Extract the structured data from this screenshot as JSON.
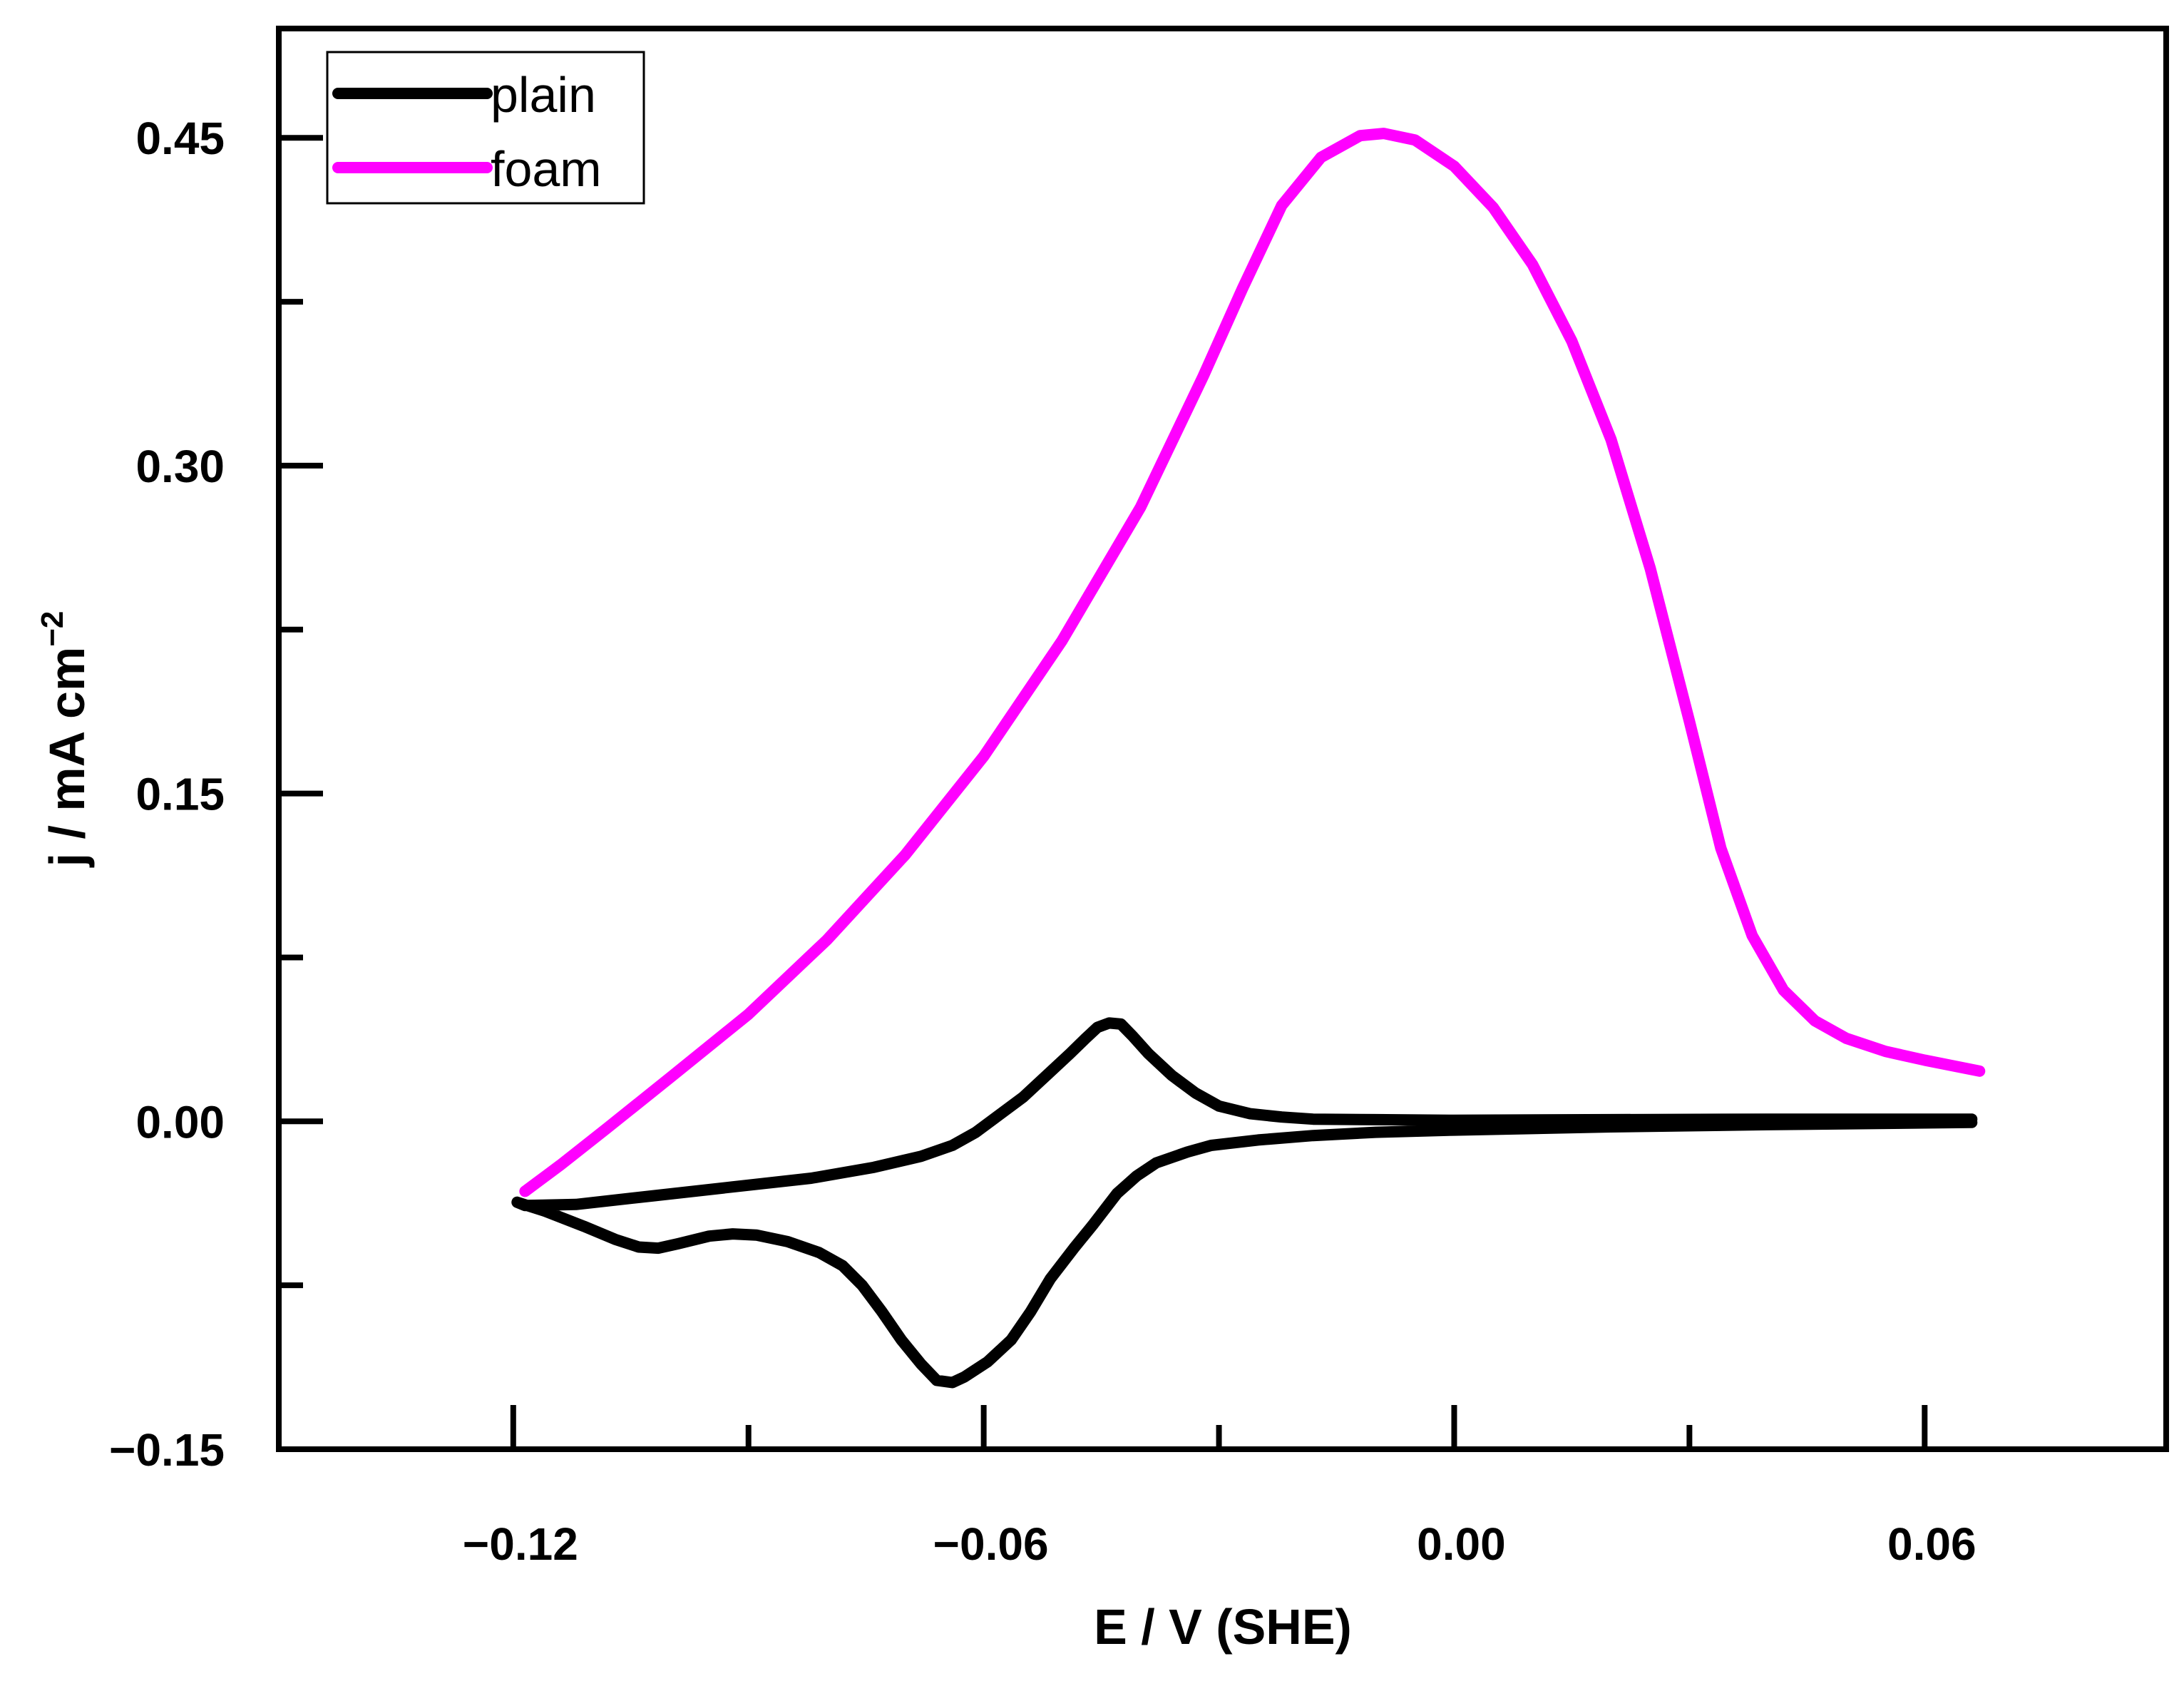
{
  "chart_data": {
    "type": "line",
    "title": "",
    "xlabel": "E / V (SHE)",
    "ylabel_main": "j / mA cm",
    "ylabel_sup": "−2",
    "xlim": [
      -0.1499,
      0.0908
    ],
    "ylim": [
      -0.15,
      0.5
    ],
    "x_ticks": [
      {
        "value": -0.12,
        "label": "−0.12"
      },
      {
        "value": -0.06,
        "label": "−0.06"
      },
      {
        "value": 0.0,
        "label": "0.00"
      },
      {
        "value": 0.06,
        "label": "0.06"
      }
    ],
    "x_minor_ticks": [
      -0.09,
      -0.03,
      0.03
    ],
    "y_ticks": [
      {
        "value": -0.15,
        "label": "−0.15"
      },
      {
        "value": 0.0,
        "label": "0.00"
      },
      {
        "value": 0.15,
        "label": "0.15"
      },
      {
        "value": 0.3,
        "label": "0.30"
      },
      {
        "value": 0.45,
        "label": "0.45"
      }
    ],
    "y_minor_ticks": [
      -0.075,
      0.075,
      0.225,
      0.375
    ],
    "legend_position": "top-left",
    "series": [
      {
        "name": "plain",
        "color": "#000000",
        "points": [
          [
            0.066,
            0.001
          ],
          [
            0.04,
            0.001
          ],
          [
            0.02,
            0.0008
          ],
          [
            0.0,
            0.0005
          ],
          [
            -0.01,
            0.0008
          ],
          [
            -0.018,
            0.001
          ],
          [
            -0.022,
            0.002
          ],
          [
            -0.026,
            0.0035
          ],
          [
            -0.03,
            0.007
          ],
          [
            -0.033,
            0.013
          ],
          [
            -0.036,
            0.021
          ],
          [
            -0.039,
            0.031
          ],
          [
            -0.041,
            0.039
          ],
          [
            -0.0425,
            0.0445
          ],
          [
            -0.044,
            0.045
          ],
          [
            -0.0455,
            0.043
          ],
          [
            -0.047,
            0.038
          ],
          [
            -0.049,
            0.031
          ],
          [
            -0.052,
            0.021
          ],
          [
            -0.055,
            0.011
          ],
          [
            -0.058,
            0.003
          ],
          [
            -0.061,
            -0.005
          ],
          [
            -0.064,
            -0.011
          ],
          [
            -0.068,
            -0.016
          ],
          [
            -0.074,
            -0.021
          ],
          [
            -0.082,
            -0.026
          ],
          [
            -0.092,
            -0.03
          ],
          [
            -0.102,
            -0.034
          ],
          [
            -0.112,
            -0.038
          ],
          [
            -0.1185,
            -0.0385
          ],
          [
            -0.1195,
            -0.037
          ],
          [
            -0.116,
            -0.041
          ],
          [
            -0.111,
            -0.048
          ],
          [
            -0.107,
            -0.054
          ],
          [
            -0.104,
            -0.0575
          ],
          [
            -0.1015,
            -0.058
          ],
          [
            -0.099,
            -0.056
          ],
          [
            -0.095,
            -0.0525
          ],
          [
            -0.092,
            -0.0515
          ],
          [
            -0.089,
            -0.052
          ],
          [
            -0.085,
            -0.055
          ],
          [
            -0.081,
            -0.06
          ],
          [
            -0.078,
            -0.066
          ],
          [
            -0.0755,
            -0.075
          ],
          [
            -0.073,
            -0.087
          ],
          [
            -0.0705,
            -0.1
          ],
          [
            -0.068,
            -0.111
          ],
          [
            -0.066,
            -0.1185
          ],
          [
            -0.064,
            -0.1195
          ],
          [
            -0.0625,
            -0.117
          ],
          [
            -0.0595,
            -0.11
          ],
          [
            -0.0565,
            -0.1
          ],
          [
            -0.054,
            -0.087
          ],
          [
            -0.0515,
            -0.072
          ],
          [
            -0.0485,
            -0.058
          ],
          [
            -0.046,
            -0.047
          ],
          [
            -0.043,
            -0.033
          ],
          [
            -0.0405,
            -0.025
          ],
          [
            -0.038,
            -0.019
          ],
          [
            -0.034,
            -0.014
          ],
          [
            -0.031,
            -0.011
          ],
          [
            -0.025,
            -0.0085
          ],
          [
            -0.018,
            -0.0065
          ],
          [
            -0.01,
            -0.005
          ],
          [
            0.0,
            -0.004
          ],
          [
            0.02,
            -0.0025
          ],
          [
            0.04,
            -0.0015
          ],
          [
            0.066,
            -0.0005
          ]
        ]
      },
      {
        "name": "foam",
        "color": "#ff00ff",
        "points": [
          [
            -0.1185,
            -0.032
          ],
          [
            -0.114,
            -0.02
          ],
          [
            -0.108,
            -0.003
          ],
          [
            -0.1,
            0.02
          ],
          [
            -0.09,
            0.049
          ],
          [
            -0.08,
            0.083
          ],
          [
            -0.07,
            0.122
          ],
          [
            -0.06,
            0.167
          ],
          [
            -0.05,
            0.22
          ],
          [
            -0.04,
            0.281
          ],
          [
            -0.032,
            0.341
          ],
          [
            -0.027,
            0.381
          ],
          [
            -0.022,
            0.419
          ],
          [
            -0.017,
            0.441
          ],
          [
            -0.012,
            0.451
          ],
          [
            -0.009,
            0.452
          ],
          [
            -0.005,
            0.449
          ],
          [
            0.0,
            0.437
          ],
          [
            0.005,
            0.418
          ],
          [
            0.01,
            0.392
          ],
          [
            0.015,
            0.357
          ],
          [
            0.02,
            0.312
          ],
          [
            0.025,
            0.253
          ],
          [
            0.03,
            0.183
          ],
          [
            0.034,
            0.125
          ],
          [
            0.038,
            0.085
          ],
          [
            0.042,
            0.06
          ],
          [
            0.046,
            0.046
          ],
          [
            0.05,
            0.038
          ],
          [
            0.055,
            0.032
          ],
          [
            0.06,
            0.028
          ],
          [
            0.067,
            0.023
          ]
        ]
      }
    ]
  }
}
